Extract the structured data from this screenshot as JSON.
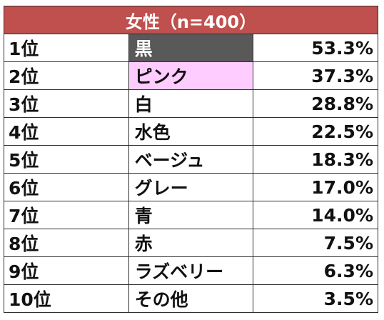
{
  "header": {
    "title": "女性（n=400）",
    "background": "#c0504d",
    "text_color": "#ffffff"
  },
  "rows": [
    {
      "rank": "1位",
      "color": "黒",
      "percent": "53.3%",
      "swatch": "#595959",
      "text_color": "#ffffff"
    },
    {
      "rank": "2位",
      "color": "ピンク",
      "percent": "37.3%",
      "swatch": "#ffccff",
      "text_color": "#111111"
    },
    {
      "rank": "3位",
      "color": "白",
      "percent": "28.8%",
      "swatch": "#ffffff",
      "text_color": "#111111"
    },
    {
      "rank": "4位",
      "color": "水色",
      "percent": "22.5%",
      "swatch": "#ffffff",
      "text_color": "#111111"
    },
    {
      "rank": "5位",
      "color": "ベージュ",
      "percent": "18.3%",
      "swatch": "#ffffff",
      "text_color": "#111111"
    },
    {
      "rank": "6位",
      "color": "グレー",
      "percent": "17.0%",
      "swatch": "#ffffff",
      "text_color": "#111111"
    },
    {
      "rank": "7位",
      "color": "青",
      "percent": "14.0%",
      "swatch": "#ffffff",
      "text_color": "#111111"
    },
    {
      "rank": "8位",
      "color": "赤",
      "percent": "7.5%",
      "swatch": "#ffffff",
      "text_color": "#111111"
    },
    {
      "rank": "9位",
      "color": "ラズベリー",
      "percent": "6.3%",
      "swatch": "#ffffff",
      "text_color": "#111111"
    },
    {
      "rank": "10位",
      "color": "その他",
      "percent": "3.5%",
      "swatch": "#ffffff",
      "text_color": "#111111"
    }
  ]
}
